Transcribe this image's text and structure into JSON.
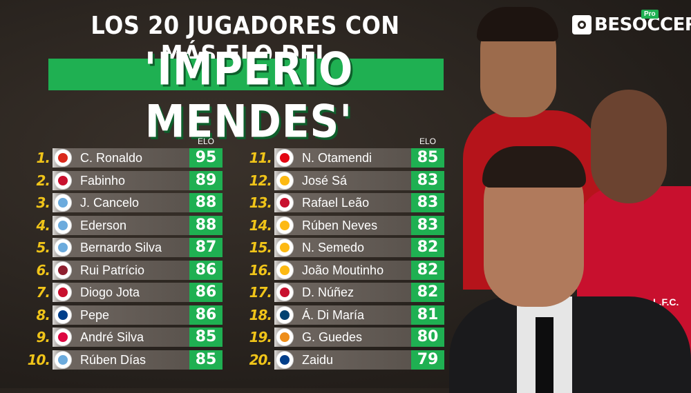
{
  "header": {
    "title_line1": "LOS 20 JUGADORES CON MÁS ELO DEL",
    "title_line2": "'IMPERIO MENDES'"
  },
  "brand": {
    "name": "BESOCCER",
    "badge": "Pro"
  },
  "elo_label": "ELO",
  "club_crest_text": "L.F.C.",
  "players": [
    {
      "rank": "1.",
      "name": "C. Ronaldo",
      "elo": "95",
      "club": "manchester-united",
      "color": "#da291c"
    },
    {
      "rank": "2.",
      "name": "Fabinho",
      "elo": "89",
      "club": "liverpool",
      "color": "#c8102e"
    },
    {
      "rank": "3.",
      "name": "J. Cancelo",
      "elo": "88",
      "club": "manchester-city",
      "color": "#6cabdd"
    },
    {
      "rank": "4.",
      "name": "Ederson",
      "elo": "88",
      "club": "manchester-city",
      "color": "#6cabdd"
    },
    {
      "rank": "5.",
      "name": "Bernardo Silva",
      "elo": "87",
      "club": "manchester-city",
      "color": "#6cabdd"
    },
    {
      "rank": "6.",
      "name": "Rui Patrício",
      "elo": "86",
      "club": "roma",
      "color": "#8e1f2f"
    },
    {
      "rank": "7.",
      "name": "Diogo Jota",
      "elo": "86",
      "club": "liverpool",
      "color": "#c8102e"
    },
    {
      "rank": "8.",
      "name": "Pepe",
      "elo": "86",
      "club": "porto",
      "color": "#003e8a"
    },
    {
      "rank": "9.",
      "name": "André Silva",
      "elo": "85",
      "club": "rb-leipzig",
      "color": "#dd0741"
    },
    {
      "rank": "10.",
      "name": "Rúben Días",
      "elo": "85",
      "club": "manchester-city",
      "color": "#6cabdd"
    },
    {
      "rank": "11.",
      "name": "N. Otamendi",
      "elo": "85",
      "club": "benfica",
      "color": "#e30613"
    },
    {
      "rank": "12.",
      "name": "José Sá",
      "elo": "83",
      "club": "wolves",
      "color": "#fdb913"
    },
    {
      "rank": "13.",
      "name": "Rafael Leão",
      "elo": "83",
      "club": "ac-milan",
      "color": "#c8102e"
    },
    {
      "rank": "14.",
      "name": "Rúben Neves",
      "elo": "83",
      "club": "wolves",
      "color": "#fdb913"
    },
    {
      "rank": "15.",
      "name": "N. Semedo",
      "elo": "82",
      "club": "wolves",
      "color": "#fdb913"
    },
    {
      "rank": "16.",
      "name": "João Moutinho",
      "elo": "82",
      "club": "wolves",
      "color": "#fdb913"
    },
    {
      "rank": "17.",
      "name": "D. Núñez",
      "elo": "82",
      "club": "liverpool",
      "color": "#c8102e"
    },
    {
      "rank": "18.",
      "name": "Á. Di María",
      "elo": "81",
      "club": "psg",
      "color": "#004170"
    },
    {
      "rank": "19.",
      "name": "G. Guedes",
      "elo": "80",
      "club": "valencia",
      "color": "#ee8e1b"
    },
    {
      "rank": "20.",
      "name": "Zaidu",
      "elo": "79",
      "club": "porto",
      "color": "#003e8a"
    }
  ]
}
